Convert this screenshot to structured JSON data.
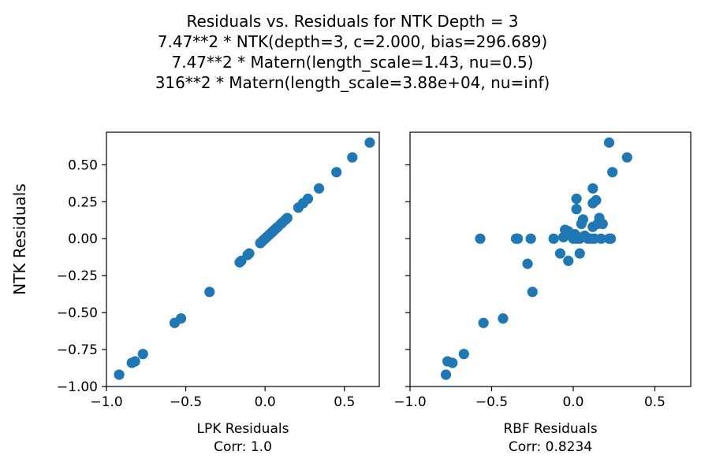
{
  "figure": {
    "title_lines": [
      "Residuals vs. Residuals for NTK Depth = 3",
      "7.47**2 * NTK(depth=3, c=2.000, bias=296.689)",
      "7.47**2 * Matern(length_scale=1.43, nu=0.5)",
      "316**2 * Matern(length_scale=3.88e+04, nu=inf)"
    ],
    "ylabel": "NTK Residuals",
    "marker_color": "#1f77b4"
  },
  "chart_data": [
    {
      "type": "scatter",
      "xlabel": "LPK Residuals",
      "corr_label": "Corr: 1.0",
      "xlim": [
        -1.0,
        0.72
      ],
      "ylim": [
        -1.0,
        0.72
      ],
      "xticks": [
        -1.0,
        -0.5,
        0.0,
        0.5
      ],
      "xtick_labels": [
        "−1.0",
        "−0.5",
        "0.0",
        "0.5"
      ],
      "yticks": [
        -1.0,
        -0.75,
        -0.5,
        -0.25,
        0.0,
        0.25,
        0.5
      ],
      "ytick_labels": [
        "−1.00",
        "−0.75",
        "−0.50",
        "−0.25",
        "0.00",
        "0.25",
        "0.50"
      ],
      "grid": false,
      "points": [
        [
          -0.92,
          -0.92
        ],
        [
          -0.84,
          -0.84
        ],
        [
          -0.82,
          -0.83
        ],
        [
          -0.77,
          -0.78
        ],
        [
          -0.57,
          -0.57
        ],
        [
          -0.53,
          -0.54
        ],
        [
          -0.35,
          -0.36
        ],
        [
          -0.16,
          -0.16
        ],
        [
          -0.15,
          -0.15
        ],
        [
          -0.11,
          -0.11
        ],
        [
          -0.1,
          -0.1
        ],
        [
          -0.03,
          -0.03
        ],
        [
          -0.02,
          -0.02
        ],
        [
          -0.01,
          -0.01
        ],
        [
          0.0,
          0.0
        ],
        [
          0.01,
          0.01
        ],
        [
          0.02,
          0.02
        ],
        [
          0.03,
          0.03
        ],
        [
          0.04,
          0.04
        ],
        [
          0.05,
          0.05
        ],
        [
          0.06,
          0.06
        ],
        [
          0.07,
          0.07
        ],
        [
          0.08,
          0.08
        ],
        [
          0.1,
          0.1
        ],
        [
          0.11,
          0.11
        ],
        [
          0.13,
          0.13
        ],
        [
          0.14,
          0.14
        ],
        [
          0.21,
          0.21
        ],
        [
          0.24,
          0.24
        ],
        [
          0.27,
          0.27
        ],
        [
          0.34,
          0.34
        ],
        [
          0.45,
          0.45
        ],
        [
          0.55,
          0.55
        ],
        [
          0.66,
          0.65
        ]
      ]
    },
    {
      "type": "scatter",
      "xlabel": "RBF Residuals",
      "corr_label": "Corr: 0.8234",
      "xlim": [
        -1.0,
        0.72
      ],
      "ylim": [
        -1.0,
        0.72
      ],
      "xticks": [
        -1.0,
        -0.5,
        0.0,
        0.5
      ],
      "xtick_labels": [
        "−1.0",
        "−0.5",
        "0.0",
        "0.5"
      ],
      "yticks": [
        -1.0,
        -0.75,
        -0.5,
        -0.25,
        0.0,
        0.25,
        0.5
      ],
      "ytick_labels": [
        "",
        "",
        "",
        "",
        "",
        "",
        ""
      ],
      "grid": false,
      "points": [
        [
          -0.78,
          -0.92
        ],
        [
          -0.77,
          -0.83
        ],
        [
          -0.74,
          -0.84
        ],
        [
          -0.67,
          -0.78
        ],
        [
          -0.55,
          -0.57
        ],
        [
          -0.43,
          -0.54
        ],
        [
          -0.25,
          -0.36
        ],
        [
          -0.28,
          -0.17
        ],
        [
          -0.57,
          0.0
        ],
        [
          -0.35,
          0.0
        ],
        [
          -0.34,
          0.0
        ],
        [
          -0.26,
          0.0
        ],
        [
          -0.12,
          0.0
        ],
        [
          -0.08,
          -0.1
        ],
        [
          -0.03,
          -0.15
        ],
        [
          0.04,
          -0.1
        ],
        [
          -0.06,
          0.01
        ],
        [
          -0.05,
          0.06
        ],
        [
          -0.03,
          0.05
        ],
        [
          -0.01,
          0.02
        ],
        [
          0.0,
          0.0
        ],
        [
          0.01,
          0.03
        ],
        [
          0.02,
          0.0
        ],
        [
          0.03,
          0.01
        ],
        [
          0.04,
          0.0
        ],
        [
          0.05,
          0.1
        ],
        [
          0.06,
          0.13
        ],
        [
          0.07,
          0.02
        ],
        [
          0.08,
          0.01
        ],
        [
          0.09,
          0.0
        ],
        [
          0.11,
          0.0
        ],
        [
          0.12,
          0.08
        ],
        [
          0.13,
          0.0
        ],
        [
          0.15,
          0.1
        ],
        [
          0.16,
          0.14
        ],
        [
          0.17,
          0.0
        ],
        [
          0.18,
          0.1
        ],
        [
          0.22,
          0.0
        ],
        [
          0.23,
          0.0
        ],
        [
          0.02,
          0.27
        ],
        [
          0.02,
          0.2
        ],
        [
          0.12,
          0.24
        ],
        [
          0.12,
          0.34
        ],
        [
          0.14,
          0.26
        ],
        [
          0.24,
          0.45
        ],
        [
          0.33,
          0.55
        ],
        [
          0.22,
          0.65
        ]
      ]
    }
  ]
}
